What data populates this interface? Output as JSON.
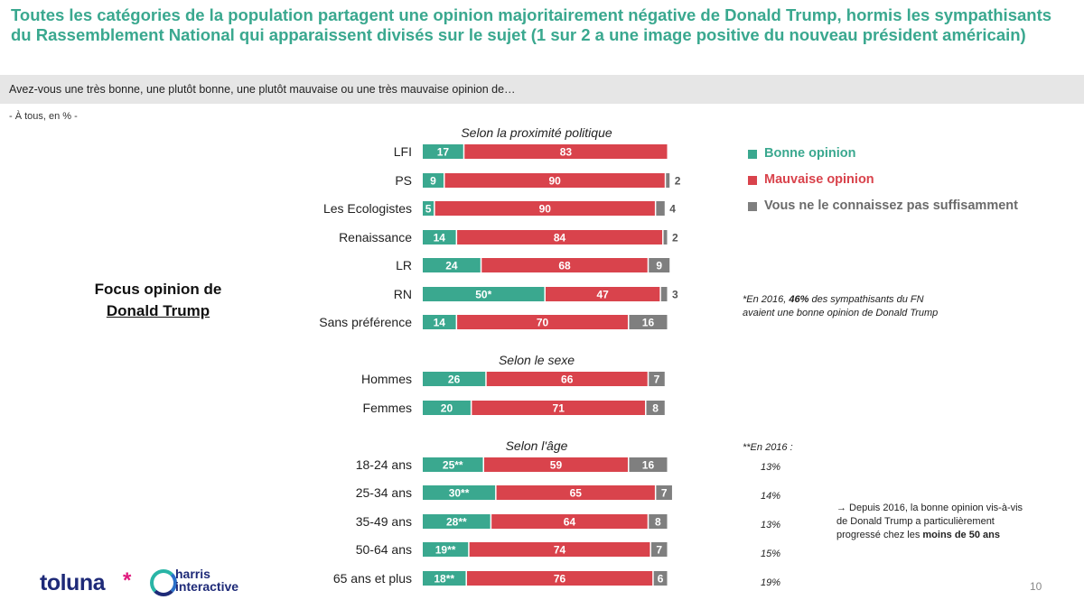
{
  "title": "Toutes les catégories de la population partagent une opinion majoritairement négative de Donald Trump, hormis les sympathisants du Rassemblement National qui apparaissent divisés sur le sujet (1 sur 2 a une image positive du nouveau président américain)",
  "question": "Avez-vous une très bonne, une plutôt bonne, une plutôt mauvaise ou une très mauvaise opinion de…",
  "base": "- À tous, en % -",
  "focus": {
    "line1": "Focus opinion de",
    "line2": "Donald Trump"
  },
  "colors": {
    "good": "#3aa88f",
    "bad": "#d9434c",
    "unknown": "#7f7f7f",
    "title": "#3aa88f"
  },
  "legend": {
    "good": "Bonne opinion",
    "bad": "Mauvaise opinion",
    "unknown": "Vous ne le connaissez pas suffisamment"
  },
  "chart_data": {
    "type": "bar",
    "orientation": "horizontal",
    "stacked": true,
    "series_names": [
      "Bonne opinion",
      "Mauvaise opinion",
      "Vous ne le connaissez pas suffisamment"
    ],
    "groups": [
      {
        "title": "Selon la proximité politique",
        "rows": [
          {
            "label": "LFI",
            "good": 17,
            "bad": 83,
            "unknown": 0,
            "good_label": "17",
            "bad_label": "83",
            "unknown_label": ""
          },
          {
            "label": "PS",
            "good": 9,
            "bad": 90,
            "unknown": 2,
            "good_label": "9",
            "bad_label": "90",
            "unknown_label": "2"
          },
          {
            "label": "Les Ecologistes",
            "good": 5,
            "bad": 90,
            "unknown": 4,
            "good_label": "5",
            "bad_label": "90",
            "unknown_label": "4"
          },
          {
            "label": "Renaissance",
            "good": 14,
            "bad": 84,
            "unknown": 2,
            "good_label": "14",
            "bad_label": "84",
            "unknown_label": "2"
          },
          {
            "label": "LR",
            "good": 24,
            "bad": 68,
            "unknown": 9,
            "good_label": "24",
            "bad_label": "68",
            "unknown_label": "9"
          },
          {
            "label": "RN",
            "good": 50,
            "bad": 47,
            "unknown": 3,
            "good_label": "50*",
            "bad_label": "47",
            "unknown_label": "3"
          },
          {
            "label": "Sans préférence",
            "good": 14,
            "bad": 70,
            "unknown": 16,
            "good_label": "14",
            "bad_label": "70",
            "unknown_label": "16"
          }
        ]
      },
      {
        "title": "Selon le sexe",
        "rows": [
          {
            "label": "Hommes",
            "good": 26,
            "bad": 66,
            "unknown": 7,
            "good_label": "26",
            "bad_label": "66",
            "unknown_label": "7"
          },
          {
            "label": "Femmes",
            "good": 20,
            "bad": 71,
            "unknown": 8,
            "good_label": "20",
            "bad_label": "71",
            "unknown_label": "8"
          }
        ]
      },
      {
        "title": "Selon l'âge",
        "rows": [
          {
            "label": "18-24 ans",
            "good": 25,
            "bad": 59,
            "unknown": 16,
            "good_label": "25**",
            "bad_label": "59",
            "unknown_label": "16"
          },
          {
            "label": "25-34 ans",
            "good": 30,
            "bad": 65,
            "unknown": 7,
            "good_label": "30**",
            "bad_label": "65",
            "unknown_label": "7"
          },
          {
            "label": "35-49 ans",
            "good": 28,
            "bad": 64,
            "unknown": 8,
            "good_label": "28**",
            "bad_label": "64",
            "unknown_label": "8"
          },
          {
            "label": "50-64 ans",
            "good": 19,
            "bad": 74,
            "unknown": 7,
            "good_label": "19**",
            "bad_label": "74",
            "unknown_label": "7"
          },
          {
            "label": "65 ans et plus",
            "good": 18,
            "bad": 76,
            "unknown": 6,
            "good_label": "18**",
            "bad_label": "76",
            "unknown_label": "6"
          }
        ]
      }
    ]
  },
  "note_2016_fn": {
    "prefix": "*En 2016, ",
    "bold": "46%",
    "suffix": " des sympathisants du FN",
    "line2": "avaient une bonne opinion de Donald Trump"
  },
  "note_2016_age": {
    "title": "**En 2016 :",
    "values": [
      "13%",
      "14%",
      "13%",
      "15%",
      "19%"
    ]
  },
  "note_trend": {
    "line1": "→ Depuis 2016, la bonne opinion vis-à-vis",
    "line2": "de Donald Trump a particulièrement",
    "line3_prefix": "progressé chez les ",
    "line3_bold": "moins de 50 ans"
  },
  "logo": {
    "toluna": "toluna",
    "harris1": "harris",
    "harris2": "interactive"
  },
  "page_number": "10"
}
